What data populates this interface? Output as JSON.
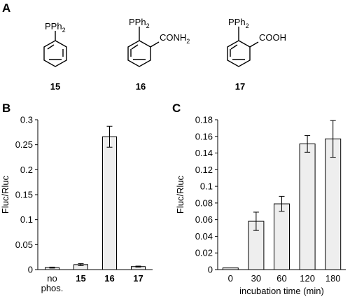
{
  "panels": {
    "a": {
      "label": "A",
      "compounds": [
        {
          "number": "15",
          "phosphine": "PPh2",
          "substituent": ""
        },
        {
          "number": "16",
          "phosphine": "PPh2",
          "substituent": "CONH2"
        },
        {
          "number": "17",
          "phosphine": "PPh2",
          "substituent": "COOH"
        }
      ]
    },
    "b": {
      "label": "B"
    },
    "c": {
      "label": "C"
    }
  },
  "chart_data": [
    {
      "type": "bar",
      "panel": "B",
      "categories": [
        "no phos.",
        "15",
        "16",
        "17"
      ],
      "values": [
        0.004,
        0.01,
        0.266,
        0.006
      ],
      "errors": [
        0.001,
        0.002,
        0.021,
        0.001
      ],
      "ylabel": "Fluc/Rluc",
      "xlabel": "",
      "ylim": [
        0,
        0.3
      ],
      "yticks": [
        "0",
        "0.05",
        "0.1",
        "0.15",
        "0.2",
        "0.25",
        "0.3"
      ],
      "bar_color": "#eeeeee",
      "grid": false
    },
    {
      "type": "bar",
      "panel": "C",
      "categories": [
        "0",
        "30",
        "60",
        "120",
        "180"
      ],
      "values": [
        0.002,
        0.058,
        0.079,
        0.151,
        0.157
      ],
      "errors": [
        0.0,
        0.011,
        0.009,
        0.01,
        0.022
      ],
      "ylabel": "Fluc/Rluc",
      "xlabel": "incubation time (min)",
      "ylim": [
        0,
        0.18
      ],
      "yticks": [
        "0",
        "0.02",
        "0.04",
        "0.06",
        "0.08",
        "0.1",
        "0.12",
        "0.14",
        "0.16",
        "0.18"
      ],
      "bar_color": "#eeeeee",
      "grid": false
    }
  ]
}
